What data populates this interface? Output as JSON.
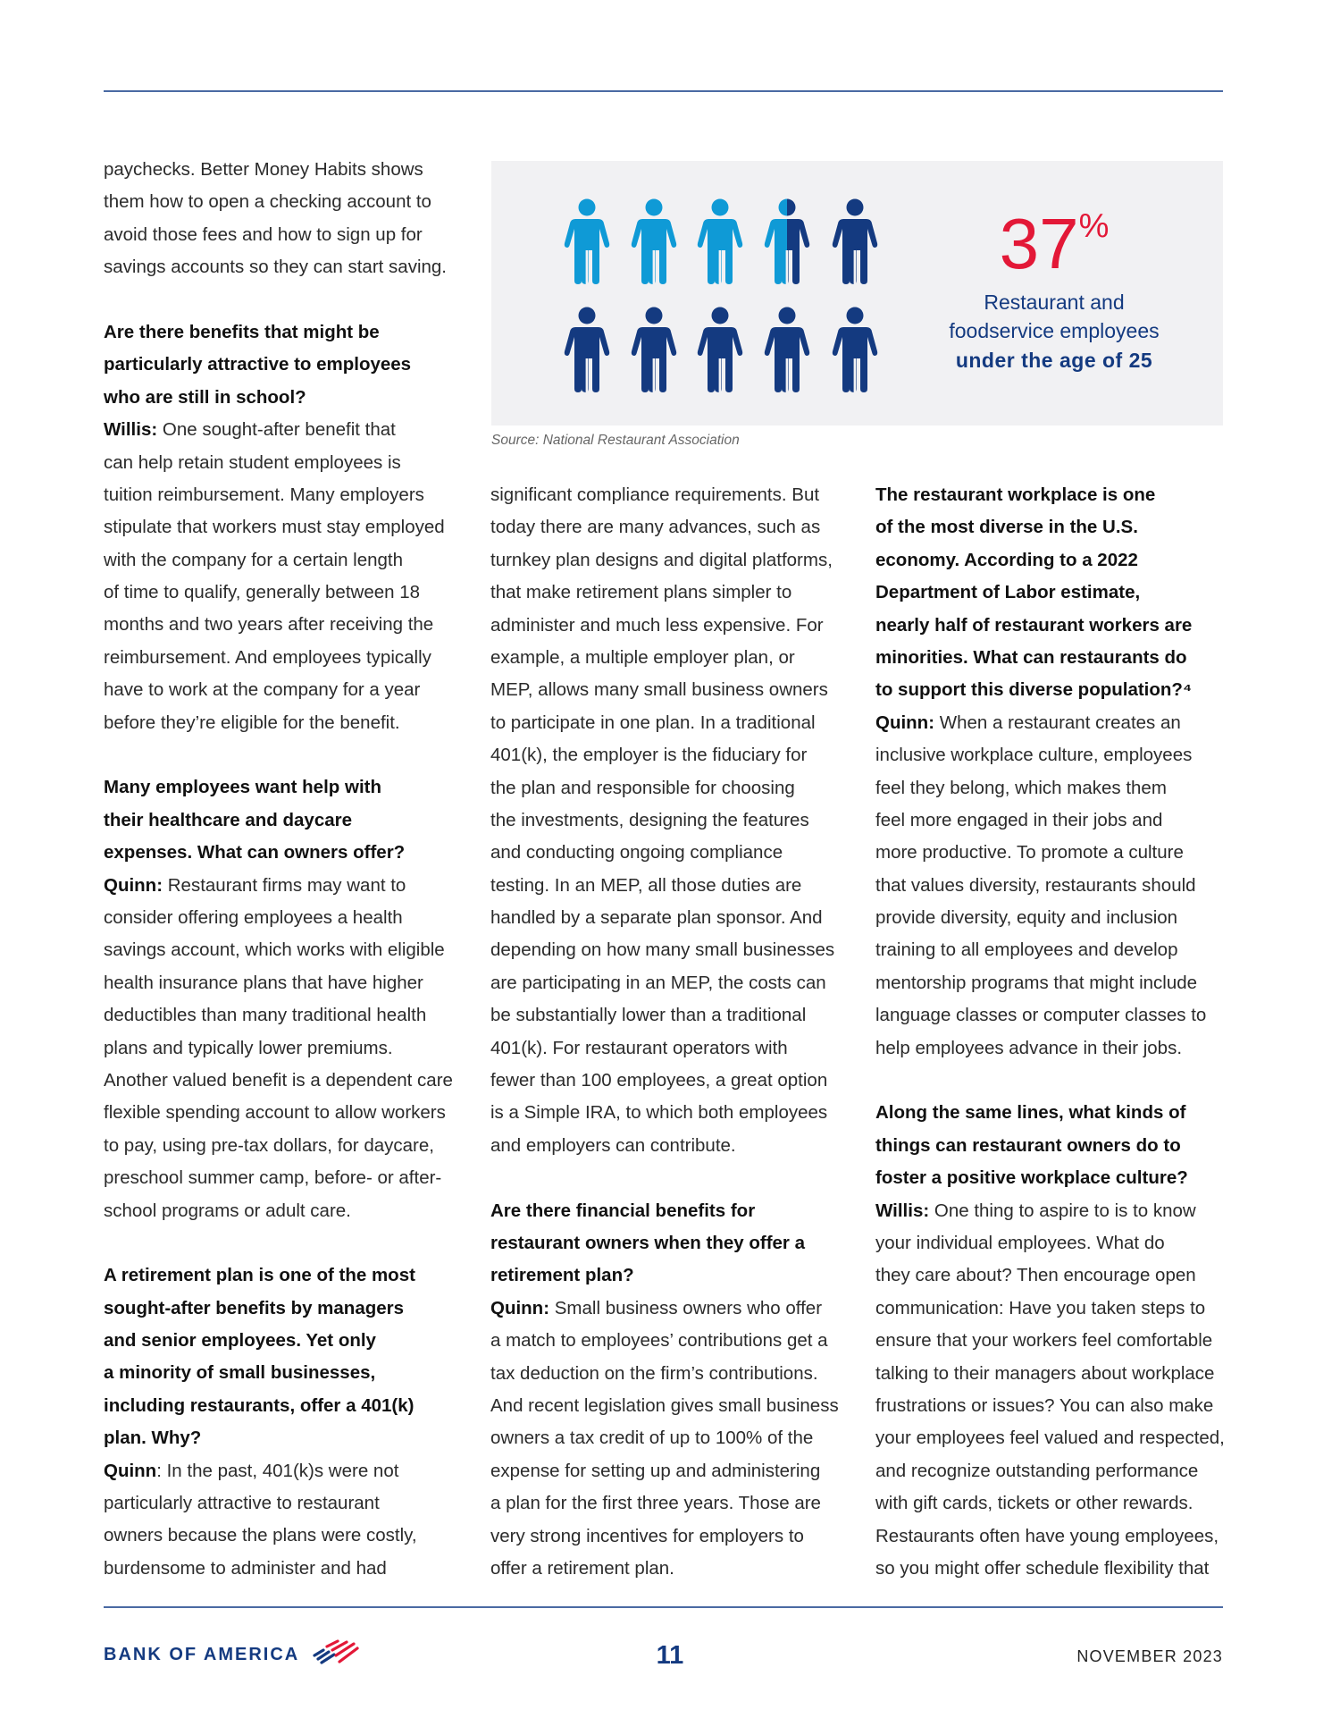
{
  "columns": [
    [
      {
        "type": "p",
        "lines": [
          "paychecks. Better Money Habits shows",
          "them how to open a checking account to",
          "avoid those fees and how to sign up for",
          "savings accounts so they can start saving."
        ]
      },
      {
        "type": "gap"
      },
      {
        "type": "q",
        "lines": [
          "Are there benefits that might be",
          "particularly attractive to employees",
          "who are still in school?"
        ]
      },
      {
        "type": "a",
        "speaker": "Willis:",
        "lines": [
          " One sought-after benefit that",
          "can help retain student employees is",
          "tuition reimbursement. Many employers",
          "stipulate that workers must stay employed",
          "with the company for a certain length",
          "of time to qualify, generally between 18",
          "months and two years after receiving the",
          "reimbursement. And employees typically",
          "have to work at the company for a year",
          "before they’re eligible for the benefit."
        ]
      },
      {
        "type": "gap"
      },
      {
        "type": "q",
        "lines": [
          "Many employees want help with",
          "their healthcare and daycare",
          "expenses. What can owners offer?"
        ]
      },
      {
        "type": "a",
        "speaker": "Quinn:",
        "lines": [
          " Restaurant firms may want to",
          "consider offering employees a health",
          "savings account, which works with eligible",
          "health insurance plans that have higher",
          "deductibles than many traditional health",
          "plans and typically lower premiums.",
          "Another valued benefit is a dependent care",
          "flexible spending account to allow workers",
          "to pay, using pre-tax dollars, for daycare,",
          "preschool summer camp, before- or after-",
          "school programs or adult care."
        ]
      },
      {
        "type": "gap"
      },
      {
        "type": "q",
        "lines": [
          "A retirement plan is one of the most",
          "sought-after benefits by managers",
          "and senior employees. Yet only",
          "a minority of small businesses,",
          "including restaurants, offer a 401(k)",
          "plan. Why?"
        ]
      },
      {
        "type": "a",
        "speaker": "Quinn",
        "lines": [
          ": In the past, 401(k)s were not",
          "particularly attractive to restaurant",
          "owners because the plans were costly,",
          "burdensome to administer and had"
        ]
      }
    ],
    [
      {
        "type": "p",
        "lines": [
          "significant compliance requirements. But",
          "today there are many advances, such as",
          "turnkey plan designs and digital platforms,",
          "that make retirement plans simpler to",
          "administer and much less expensive. For",
          "example, a multiple employer plan, or",
          "MEP, allows many small business owners",
          "to participate in one plan. In a traditional",
          "401(k), the employer is the fiduciary for",
          "the plan and responsible for choosing",
          "the investments, designing the features",
          "and conducting ongoing compliance",
          "testing. In an MEP, all those duties are",
          "handled by a separate plan sponsor. And",
          "depending on how many small businesses",
          "are participating in an MEP, the costs can",
          "be substantially lower than a traditional",
          "401(k). For restaurant operators with",
          "fewer than 100 employees, a great option",
          "is a Simple IRA, to which both employees",
          "and employers can contribute."
        ]
      },
      {
        "type": "gap"
      },
      {
        "type": "q",
        "lines": [
          "Are there financial benefits for",
          "restaurant owners when they offer a",
          "retirement plan?"
        ]
      },
      {
        "type": "a",
        "speaker": "Quinn:",
        "lines": [
          " Small business owners who offer",
          "a match to employees’ contributions get a",
          "tax deduction on the firm’s contributions.",
          "And recent legislation gives small business",
          "owners a tax credit of up to 100% of the",
          "expense for setting up and administering",
          "a plan for the first three years. Those are",
          "very strong incentives for employers to",
          "offer a retirement plan."
        ]
      }
    ],
    [
      {
        "type": "q",
        "lines": [
          "The restaurant workplace is one",
          "of the most diverse in the U.S.",
          "economy. According to a 2022",
          "Department of Labor estimate,",
          "nearly half of restaurant workers are",
          "minorities. What can restaurants do",
          "to support this diverse population?⁴"
        ]
      },
      {
        "type": "a",
        "speaker": "Quinn:",
        "lines": [
          " When a restaurant creates an",
          "inclusive workplace culture, employees",
          "feel they belong, which makes them",
          "feel more engaged in their jobs and",
          "more productive. To promote a culture",
          "that values diversity, restaurants should",
          "provide diversity, equity and inclusion",
          "training to all employees and develop",
          "mentorship programs that might include",
          "language classes or computer classes to",
          "help employees advance in their jobs."
        ]
      },
      {
        "type": "gap"
      },
      {
        "type": "q",
        "lines": [
          "Along the same lines, what kinds of",
          "things can restaurant owners do to",
          "foster a positive workplace culture?"
        ]
      },
      {
        "type": "a",
        "speaker": "Willis:",
        "lines": [
          " One thing to aspire to is to know",
          "your individual employees. What do",
          "they care about? Then encourage open",
          "communication: Have you taken steps to",
          "ensure that your workers feel comfortable",
          "talking to their managers about workplace",
          "frustrations or issues? You can also make",
          "your employees feel valued and respected,",
          "and recognize outstanding performance",
          "with gift cards, tickets or other rewards.",
          "Restaurants often have young employees,",
          "so you might offer schedule flexibility that"
        ]
      }
    ]
  ],
  "infographic": {
    "stat_number": "37",
    "stat_unit": "%",
    "caption_line1": "Restaurant and",
    "caption_line2": "foodservice employees",
    "caption_line3": "under the age of 25",
    "source": "Source: National Restaurant Association",
    "icons_total": 10,
    "icons_highlighted": 3.5,
    "highlight_color": "#0f9ad6",
    "base_color": "#143a80",
    "stat_color": "#e31837"
  },
  "footer": {
    "logo_text": "BANK OF AMERICA",
    "page_number": "11",
    "date": "NOVEMBER 2023"
  }
}
